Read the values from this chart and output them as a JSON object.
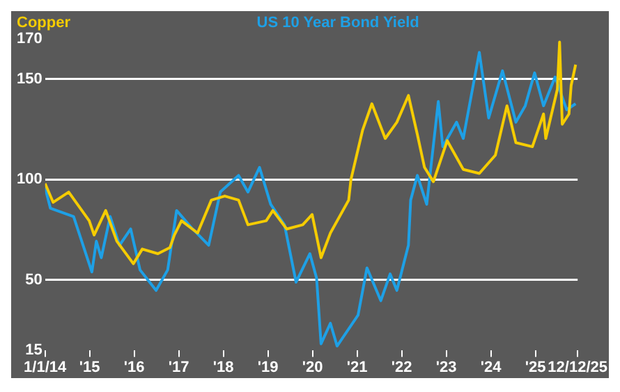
{
  "chart_data": {
    "type": "line",
    "series": [
      {
        "name": "Copper",
        "color": "#f5cc00",
        "x": [
          2014.0,
          2014.18,
          2014.53,
          2014.99,
          2015.1,
          2015.36,
          2015.61,
          2015.98,
          2016.18,
          2016.53,
          2016.8,
          2016.9,
          2017.06,
          2017.42,
          2017.73,
          2018.03,
          2018.34,
          2018.55,
          2018.96,
          2019.11,
          2019.42,
          2019.78,
          2019.99,
          2020.19,
          2020.4,
          2020.81,
          2020.86,
          2021.12,
          2021.33,
          2021.63,
          2021.89,
          2022.15,
          2022.35,
          2022.51,
          2022.71,
          2023.02,
          2023.38,
          2023.74,
          2024.1,
          2024.36,
          2024.56,
          2024.93,
          2025.18,
          2025.23,
          2025.49,
          2025.54,
          2025.6,
          2025.75,
          2025.8,
          2025.9
        ],
        "values": [
          98,
          88.6,
          93.7,
          79.4,
          72.3,
          84.5,
          69.2,
          58,
          65.3,
          63,
          66,
          72.3,
          79.4,
          73.3,
          89.7,
          91.7,
          89.7,
          77.4,
          79.4,
          84.5,
          75.3,
          77.4,
          82.5,
          61,
          73.3,
          89.7,
          99.9,
          124.4,
          137.7,
          120.4,
          128.5,
          141.8,
          122.4,
          106,
          98.9,
          119.3,
          105,
          103,
          112.1,
          136.7,
          118.3,
          116.3,
          132.6,
          120.4,
          144.9,
          168.4,
          127.5,
          132.6,
          146.9,
          157.2
        ]
      },
      {
        "name": "US 10 Year Bond Yield",
        "color": "#1ea0e6",
        "x": [
          2014.0,
          2014.12,
          2014.64,
          2015.05,
          2015.15,
          2015.26,
          2015.46,
          2015.67,
          2015.92,
          2016.13,
          2016.49,
          2016.75,
          2016.95,
          2017.31,
          2017.67,
          2017.93,
          2018.34,
          2018.55,
          2018.81,
          2019.06,
          2019.37,
          2019.63,
          2019.94,
          2020.09,
          2020.19,
          2020.4,
          2020.55,
          2021.02,
          2021.22,
          2021.53,
          2021.74,
          2021.89,
          2022.15,
          2022.2,
          2022.35,
          2022.56,
          2022.82,
          2022.92,
          2023.23,
          2023.38,
          2023.74,
          2023.95,
          2024.26,
          2024.56,
          2024.77,
          2024.98,
          2025.18,
          2025.44,
          2025.7,
          2025.9
        ],
        "values": [
          96,
          85.6,
          81.5,
          53.9,
          69.2,
          61,
          81.5,
          67.2,
          75.3,
          54.9,
          44.7,
          54.9,
          84.5,
          75.3,
          67.2,
          93.7,
          102,
          93.7,
          106,
          87.6,
          77.4,
          48.8,
          63,
          50.8,
          18.1,
          28.3,
          17,
          32.4,
          55.9,
          39.6,
          52.9,
          44.7,
          67.2,
          89.7,
          102,
          87.6,
          138.8,
          116.3,
          128.5,
          120.4,
          163.3,
          130.6,
          154.1,
          128.5,
          136.7,
          153.1,
          136.7,
          151,
          134.7,
          137.7
        ]
      }
    ],
    "xlim": [
      2014.0,
      2025.945
    ],
    "xticks": [
      {
        "value": 2014.0,
        "label": "1/1/14"
      },
      {
        "value": 2015,
        "label": "'15"
      },
      {
        "value": 2016,
        "label": "'16"
      },
      {
        "value": 2017,
        "label": "'17"
      },
      {
        "value": 2018,
        "label": "'18"
      },
      {
        "value": 2019,
        "label": "'19"
      },
      {
        "value": 2020,
        "label": "'20"
      },
      {
        "value": 2021,
        "label": "'21"
      },
      {
        "value": 2022,
        "label": "'22"
      },
      {
        "value": 2023,
        "label": "'23"
      },
      {
        "value": 2024,
        "label": "'24"
      },
      {
        "value": 2025,
        "label": "'25"
      },
      {
        "value": 2025.945,
        "label": "12/12/25"
      }
    ],
    "ylim": [
      15,
      170
    ],
    "yticks": [
      15,
      50,
      100,
      150,
      170
    ],
    "grid": "y",
    "marker": "none",
    "line_style": "solid"
  }
}
